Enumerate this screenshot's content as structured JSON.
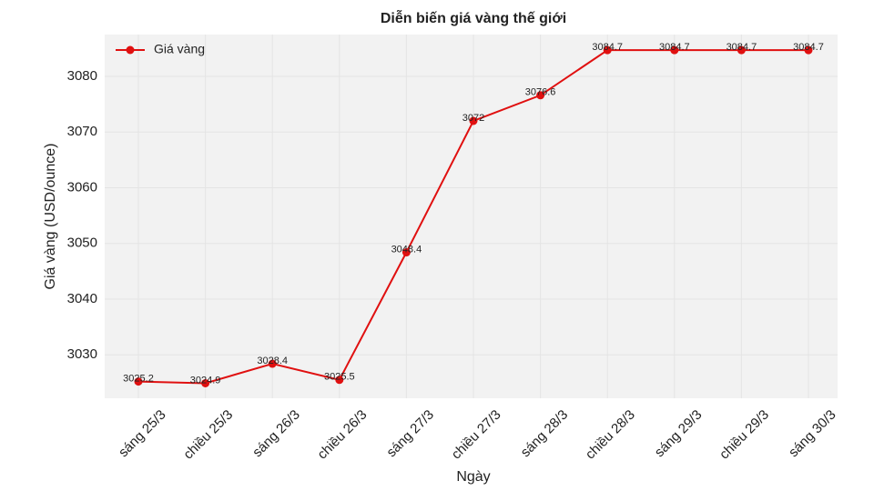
{
  "chart_data": {
    "type": "line",
    "title": "Diễn biến giá vàng thế giới",
    "x_label": "Ngày",
    "y_label": "Giá vàng (USD/ounce)",
    "categories": [
      "sáng 25/3",
      "chiều 25/3",
      "sáng 26/3",
      "chiều 26/3",
      "sáng 27/3",
      "chiều 27/3",
      "sáng 28/3",
      "chiều 28/3",
      "sáng 29/3",
      "chiều 29/3",
      "sáng 30/3"
    ],
    "series": [
      {
        "name": "Giá vàng",
        "color": "#e01010",
        "values": [
          3025.2,
          3024.9,
          3028.4,
          3025.5,
          3048.4,
          3072,
          3076.6,
          3084.7,
          3084.7,
          3084.7,
          3084.7
        ]
      }
    ],
    "ylim": [
      3022.2,
      3087.5
    ],
    "yticks": [
      3030,
      3040,
      3050,
      3060,
      3070,
      3080
    ],
    "grid": true,
    "legend": "upper left"
  }
}
